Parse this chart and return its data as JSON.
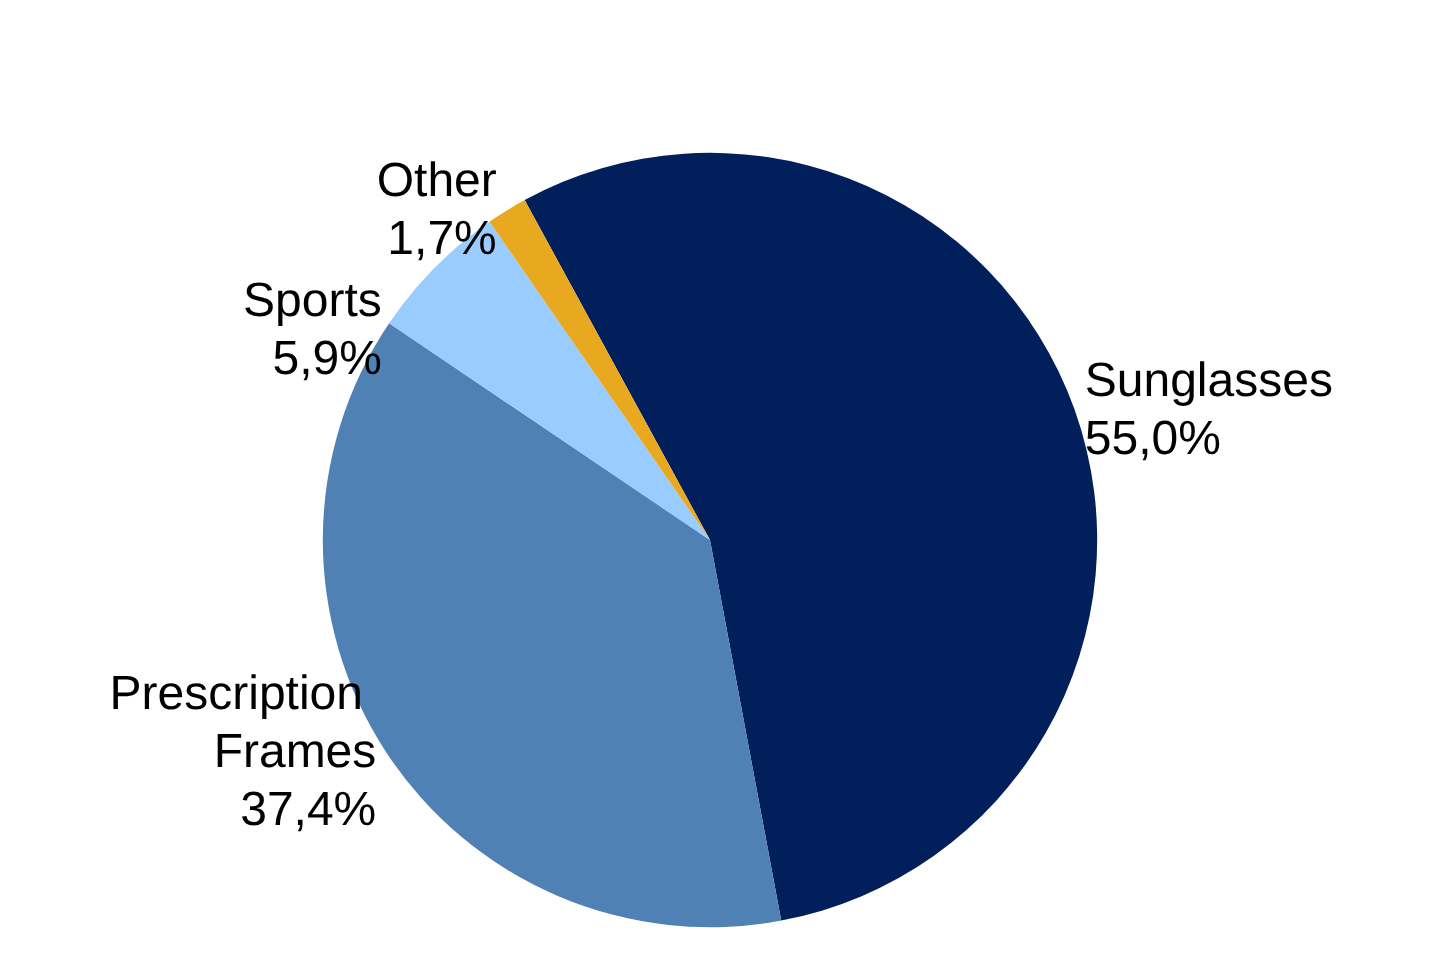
{
  "chart_data": {
    "type": "pie",
    "categories": [
      "Sunglasses",
      "Prescription Frames",
      "Sports",
      "Other"
    ],
    "values": [
      55.0,
      37.4,
      5.9,
      1.7
    ],
    "value_labels": [
      "55,0%",
      "37,4%",
      "5,9%",
      "1,7%"
    ],
    "colors": [
      "#001f5b",
      "#4f81b4",
      "#99ccff",
      "#e8a820"
    ],
    "legend": false
  }
}
